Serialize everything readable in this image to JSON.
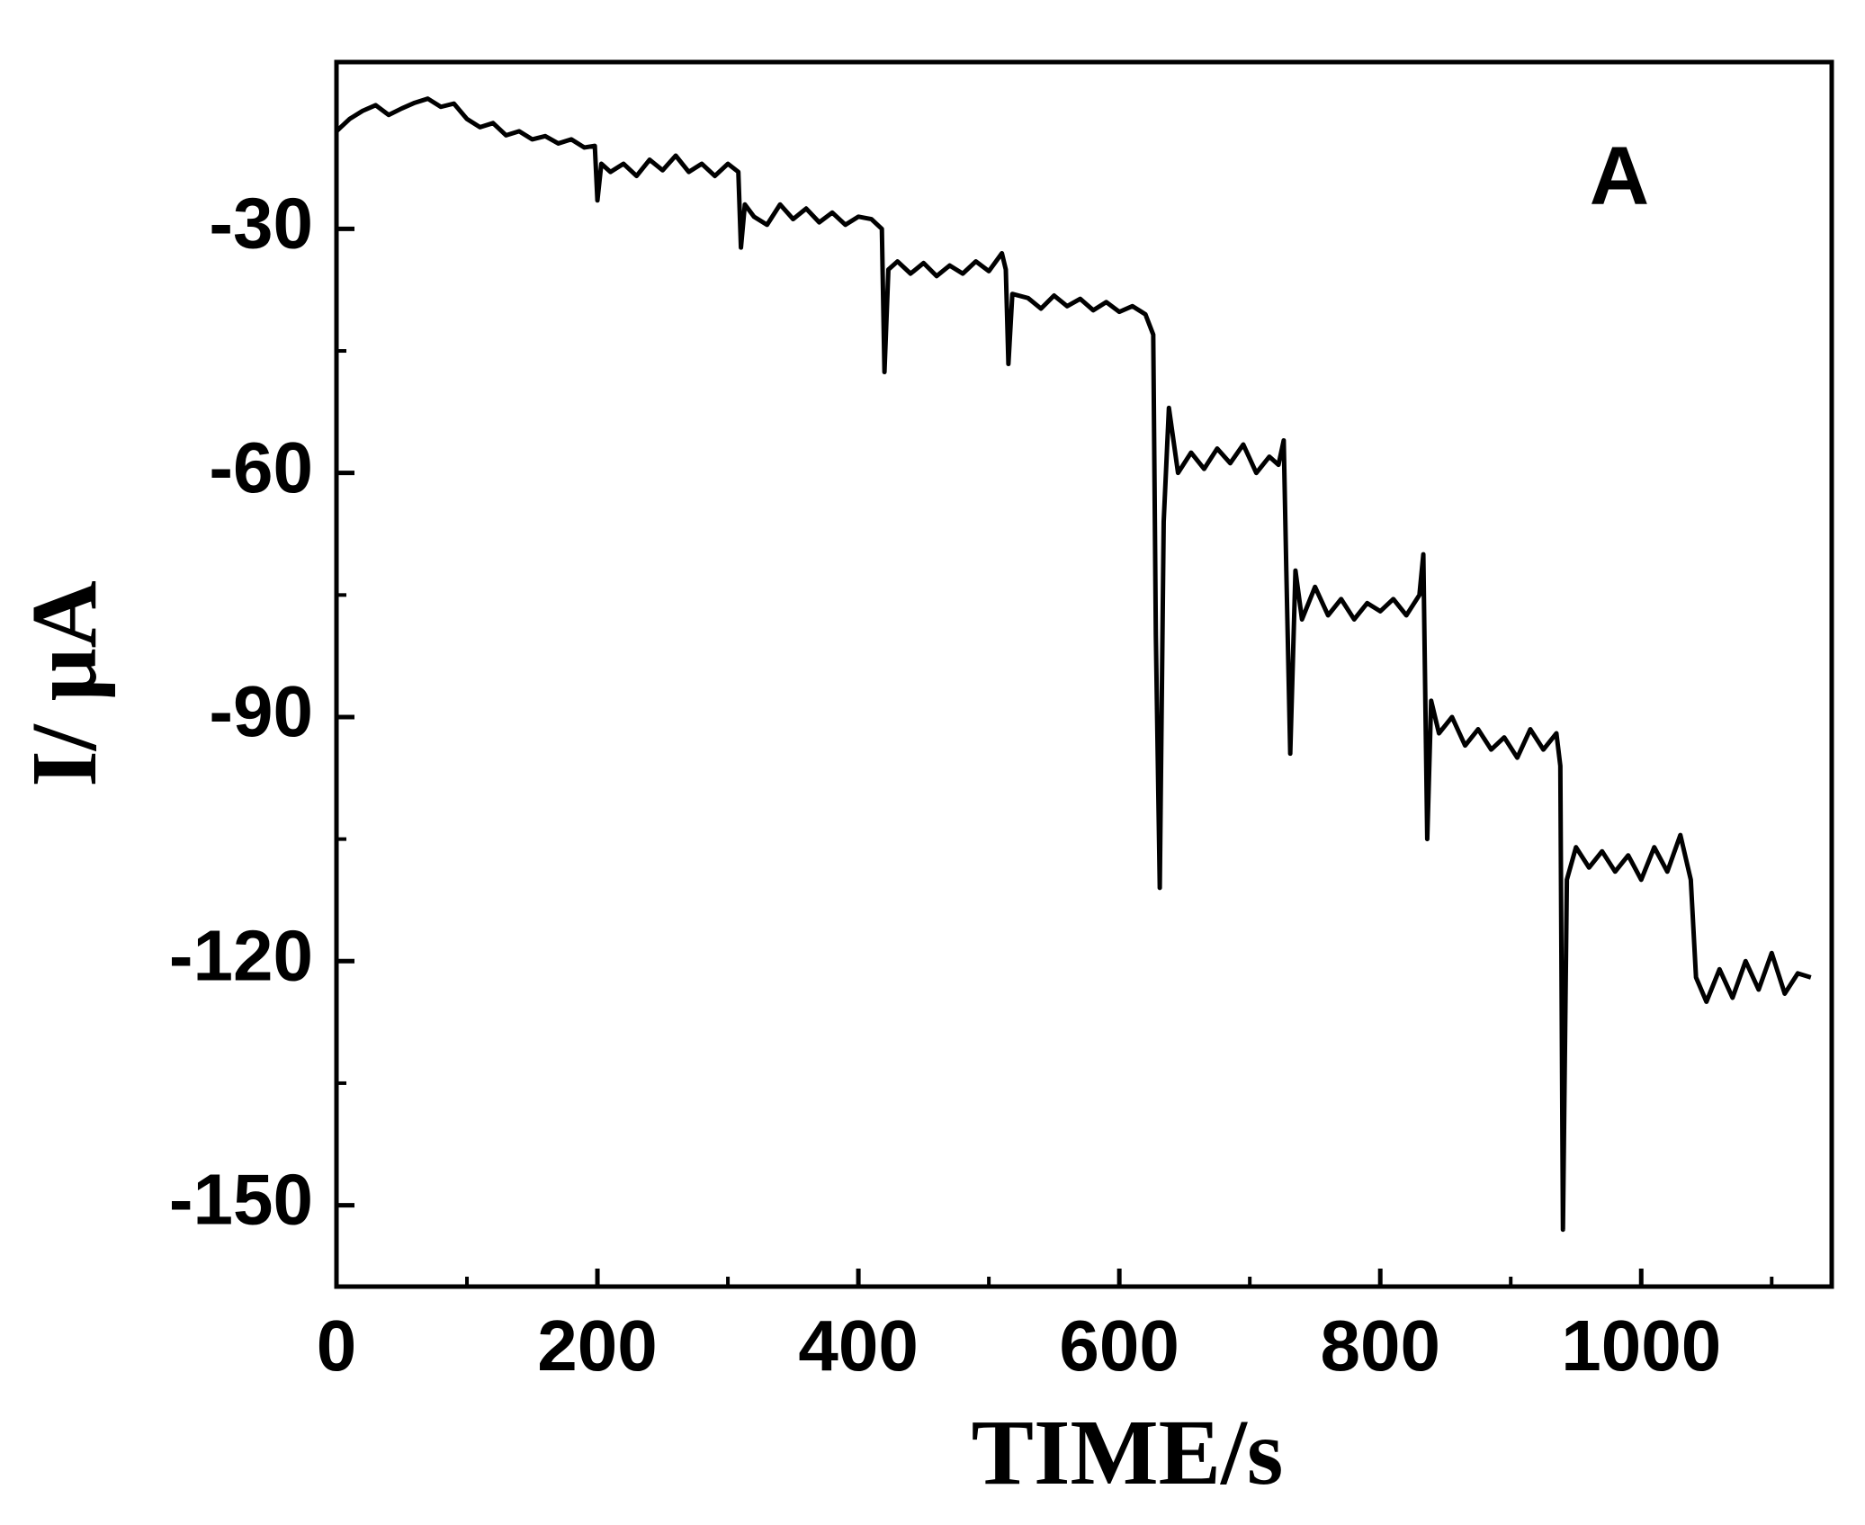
{
  "chart_data": {
    "type": "line",
    "xlabel": "TIME/s",
    "ylabel": "I/ μA",
    "annotation": "A",
    "xlim": [
      0,
      1146
    ],
    "ylim": [
      -160,
      -9.5
    ],
    "xticks": [
      0,
      200,
      400,
      600,
      800,
      1000
    ],
    "xminorticks": [
      100,
      300,
      500,
      700,
      900,
      1100
    ],
    "yticks": [
      -30,
      -60,
      -90,
      -120,
      -150
    ],
    "yminorticks": [
      -45,
      -75,
      -105,
      -135
    ],
    "x": [
      0,
      10,
      20,
      30,
      40,
      50,
      60,
      70,
      80,
      90,
      100,
      110,
      120,
      130,
      140,
      150,
      160,
      170,
      180,
      190,
      198,
      200,
      203,
      210,
      220,
      230,
      240,
      250,
      260,
      270,
      280,
      290,
      300,
      308,
      310,
      313,
      320,
      330,
      340,
      350,
      360,
      370,
      380,
      390,
      400,
      410,
      418,
      420,
      423,
      430,
      440,
      450,
      460,
      470,
      480,
      490,
      500,
      510,
      513,
      515,
      518,
      530,
      540,
      550,
      560,
      570,
      580,
      590,
      600,
      610,
      620,
      626,
      628,
      631,
      634,
      638,
      645,
      655,
      665,
      675,
      685,
      695,
      705,
      715,
      722,
      726,
      728,
      731,
      735,
      740,
      750,
      760,
      770,
      780,
      790,
      800,
      810,
      820,
      830,
      833,
      836,
      839,
      845,
      855,
      865,
      875,
      885,
      895,
      905,
      915,
      925,
      935,
      938,
      940,
      943,
      950,
      960,
      970,
      980,
      990,
      1000,
      1010,
      1020,
      1030,
      1038,
      1042,
      1050,
      1060,
      1070,
      1080,
      1090,
      1100,
      1110,
      1120,
      1130
    ],
    "series": [
      {
        "color": "#000000",
        "values": [
          -18,
          -16.5,
          -15.5,
          -14.8,
          -16,
          -15.2,
          -14.5,
          -14,
          -15,
          -14.6,
          -16.5,
          -17.5,
          -17,
          -18.5,
          -18,
          -19,
          -18.6,
          -19.5,
          -19,
          -20,
          -19.8,
          -26.5,
          -22,
          -23,
          -22,
          -23.5,
          -21.5,
          -22.8,
          -21,
          -23,
          -22,
          -23.5,
          -22,
          -23,
          -32.3,
          -27,
          -28.5,
          -29.5,
          -27,
          -28.8,
          -27.5,
          -29.2,
          -28,
          -29.5,
          -28.5,
          -28.8,
          -30,
          -47.6,
          -35,
          -34,
          -35.5,
          -34.2,
          -35.8,
          -34.5,
          -35.5,
          -34,
          -35.2,
          -33,
          -35,
          -46.6,
          -38,
          -38.5,
          -39.8,
          -38.2,
          -39.5,
          -38.6,
          -40,
          -39,
          -40.2,
          -39.5,
          -40.5,
          -43,
          -80,
          -111,
          -66,
          -52,
          -60,
          -57.5,
          -59.5,
          -57,
          -58.8,
          -56.5,
          -60,
          -58,
          -59,
          -56,
          -72,
          -94.5,
          -72,
          -78,
          -74,
          -77.5,
          -75.5,
          -78,
          -76,
          -77,
          -75.5,
          -77.5,
          -75,
          -70,
          -105,
          -88,
          -92,
          -90,
          -93.5,
          -91.5,
          -94,
          -92.5,
          -95,
          -91.5,
          -94,
          -92,
          -96,
          -153,
          -110,
          -106,
          -108.5,
          -106.5,
          -109,
          -107,
          -110,
          -106,
          -109,
          -104.5,
          -110,
          -122,
          -125,
          -121,
          -124.5,
          -120,
          -123.5,
          -119,
          -124,
          -121.5,
          -122
        ]
      }
    ]
  }
}
